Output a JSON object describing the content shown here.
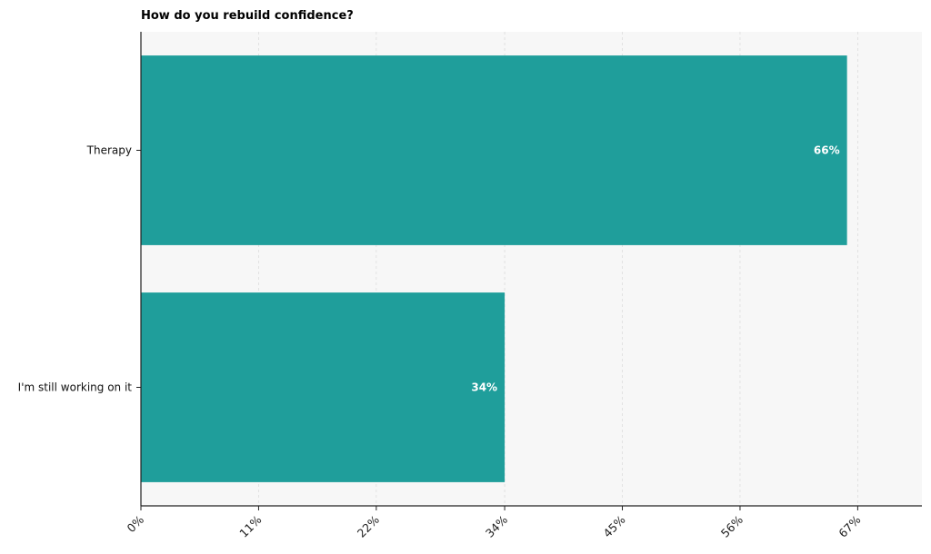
{
  "chart_data": {
    "type": "bar",
    "orientation": "horizontal",
    "title": "How do you rebuild confidence?",
    "categories": [
      "Therapy",
      "I'm still working on it"
    ],
    "values": [
      66,
      34
    ],
    "value_labels": [
      "66%",
      "34%"
    ],
    "xlim": [
      0,
      73
    ],
    "xticks": [
      0,
      11,
      22,
      34,
      45,
      56,
      67
    ],
    "xtick_labels": [
      "0%",
      "11%",
      "22%",
      "34%",
      "45%",
      "56%",
      "67%"
    ],
    "grid": "vertical-dashed",
    "xlabel": "",
    "ylabel": "",
    "colors": {
      "bar": "#1f9e9b",
      "plot_background": "#f7f7f7",
      "grid": "#dddddd",
      "axis": "#222222"
    }
  }
}
